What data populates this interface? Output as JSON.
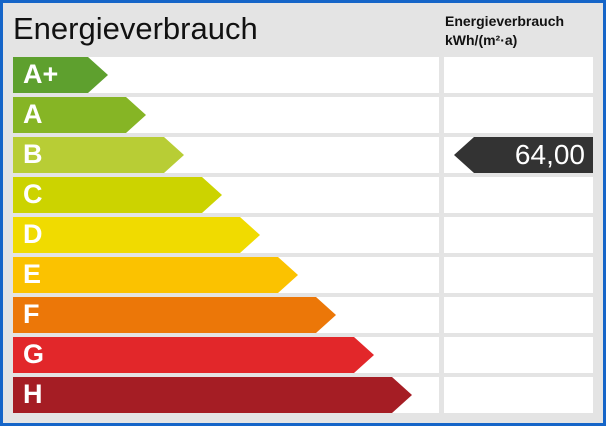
{
  "title": "Energieverbrauch",
  "unit_header": {
    "line1": "Energieverbrauch",
    "line2": "kWh/(m²·a)"
  },
  "chart_data": {
    "type": "bar",
    "categories": [
      "A+",
      "A",
      "B",
      "C",
      "D",
      "E",
      "F",
      "G",
      "H"
    ],
    "colors": [
      "#5ea02e",
      "#86b525",
      "#b8cd35",
      "#ccd300",
      "#f0db00",
      "#fbc200",
      "#ec7708",
      "#e2272a",
      "#a51d24"
    ],
    "current_class": "B",
    "current_value_label": "64,00",
    "marker_color": "#333333"
  }
}
